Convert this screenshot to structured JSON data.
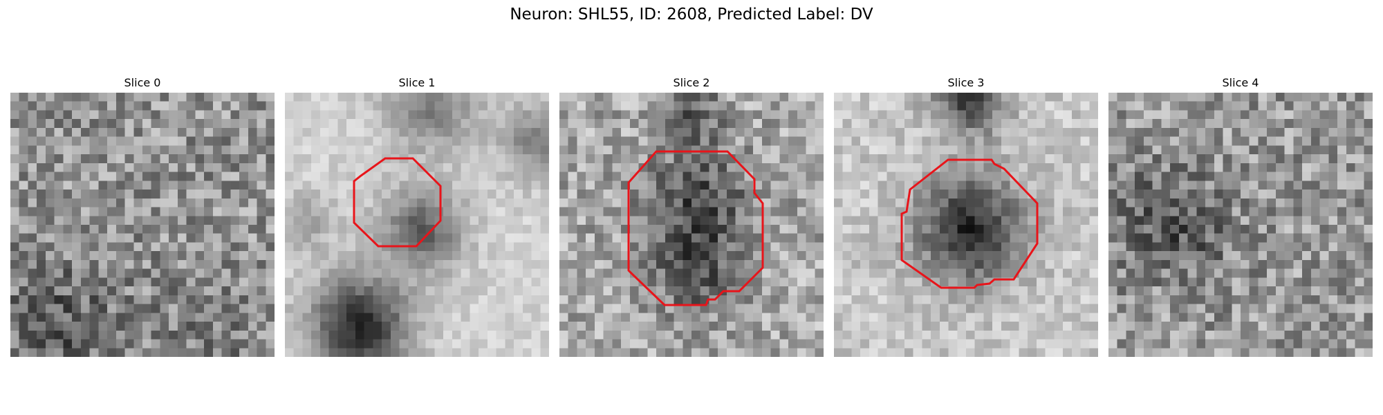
{
  "title": "Neuron: SHL55, ID: 2608, Predicted Label: DV",
  "panels": [
    {
      "title": "Slice 0",
      "roi": false
    },
    {
      "title": "Slice 1",
      "roi": true
    },
    {
      "title": "Slice 2",
      "roi": true
    },
    {
      "title": "Slice 3",
      "roi": true
    },
    {
      "title": "Slice 4",
      "roi": false
    }
  ],
  "colors": {
    "contour": "#e8141a",
    "colormap": "gray"
  }
}
